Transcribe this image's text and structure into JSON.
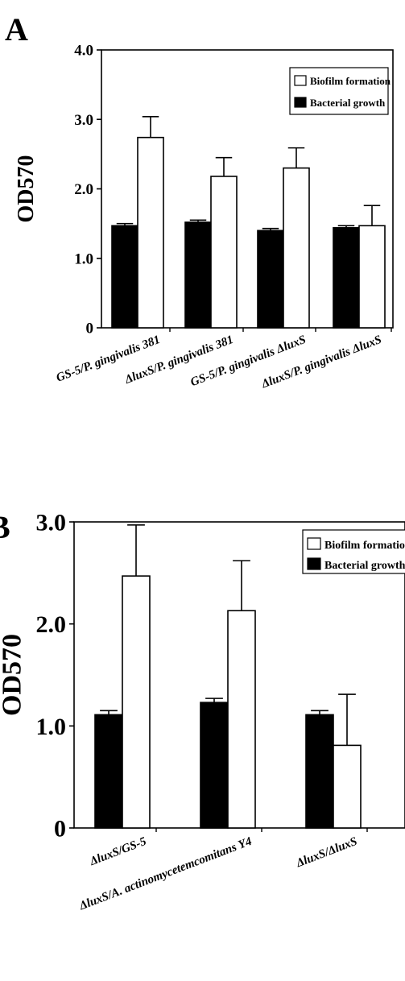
{
  "chart_data": [
    {
      "type": "bar",
      "panel_label": "A",
      "ylabel": "OD570",
      "ylim": [
        0,
        4.0
      ],
      "yticks": [
        "0",
        "1.0",
        "2.0",
        "3.0",
        "4.0"
      ],
      "categories": [
        "GS-5/P. gingivalis 381",
        "ΔluxS/P. gingivalis 381",
        "GS-5/P. gingivalis ΔluxS",
        "ΔluxS/P. gingivalis ΔluxS"
      ],
      "legend_position": "top-right",
      "grid": false,
      "series": [
        {
          "name": "Bacterial growth",
          "color": "#000000",
          "values": [
            1.47,
            1.52,
            1.4,
            1.44
          ],
          "errors": [
            0.03,
            0.03,
            0.03,
            0.03
          ]
        },
        {
          "name": "Biofilm formation",
          "color": "#ffffff",
          "values": [
            2.74,
            2.18,
            2.3,
            1.47
          ],
          "errors": [
            0.3,
            0.27,
            0.29,
            0.29
          ]
        }
      ]
    },
    {
      "type": "bar",
      "panel_label": "B",
      "ylabel": "OD570",
      "ylim": [
        0,
        3.0
      ],
      "yticks": [
        "0",
        "1.0",
        "2.0",
        "3.0"
      ],
      "categories": [
        "ΔluxS/GS-5",
        "ΔluxS/A. actinomycetemcomitans Y4",
        "ΔluxS/ΔluxS"
      ],
      "legend_position": "top-right",
      "grid": false,
      "series": [
        {
          "name": "Bacterial growth",
          "color": "#000000",
          "values": [
            1.11,
            1.23,
            1.11
          ],
          "errors": [
            0.04,
            0.04,
            0.04
          ]
        },
        {
          "name": "Biofilm formation",
          "color": "#ffffff",
          "values": [
            2.47,
            2.13,
            0.81
          ],
          "errors": [
            0.5,
            0.49,
            0.5
          ]
        }
      ]
    }
  ]
}
